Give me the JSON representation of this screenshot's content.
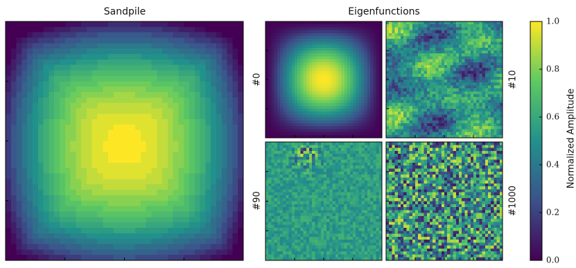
{
  "chart_data": {
    "type": "heatmap-figure",
    "titles": [
      "Sandpile",
      "Eigenfunctions"
    ],
    "panel_labels": [
      "#0",
      "#10",
      "#90",
      "#1000"
    ],
    "colormap": [
      "#440154",
      "#3b528b",
      "#21918c",
      "#5ec962",
      "#fde725"
    ],
    "colorbar": {
      "label": "Normalized Amplitude",
      "lim": [
        0,
        1
      ],
      "ticks": [
        {
          "value": 0,
          "label": "0.0"
        },
        {
          "value": 0.2,
          "label": "0.2"
        },
        {
          "value": 0.4,
          "label": "0.4"
        },
        {
          "value": 0.6,
          "label": "0.6"
        },
        {
          "value": 0.8,
          "label": "0.8"
        },
        {
          "value": 1,
          "label": "1.0"
        }
      ]
    }
  }
}
